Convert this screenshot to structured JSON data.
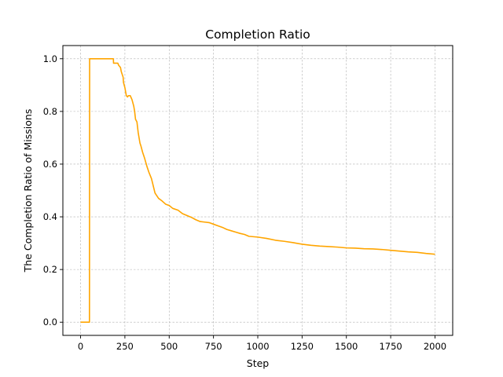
{
  "chart_data": {
    "type": "line",
    "title": "Completion Ratio",
    "xlabel": "Step",
    "ylabel": "The Completion Ratio of Missions",
    "xlim": [
      -100,
      2100
    ],
    "ylim": [
      -0.05,
      1.05
    ],
    "xticks": [
      0,
      250,
      500,
      750,
      1000,
      1250,
      1500,
      1750,
      2000
    ],
    "xtick_labels": [
      "0",
      "250",
      "500",
      "750",
      "1000",
      "1250",
      "1500",
      "1750",
      "2000"
    ],
    "yticks": [
      0.0,
      0.2,
      0.4,
      0.6,
      0.8,
      1.0
    ],
    "ytick_labels": [
      "0.0",
      "0.2",
      "0.4",
      "0.6",
      "0.8",
      "1.0"
    ],
    "grid": true,
    "series": [
      {
        "color": "#ffa500",
        "x": [
          0,
          50,
          51,
          100,
          185,
          186,
          210,
          215,
          225,
          230,
          240,
          242,
          250,
          258,
          265,
          270,
          280,
          290,
          300,
          305,
          310,
          318,
          325,
          335,
          340,
          350,
          360,
          375,
          385,
          400,
          420,
          440,
          460,
          480,
          500,
          520,
          550,
          575,
          600,
          625,
          650,
          675,
          700,
          725,
          750,
          775,
          800,
          825,
          850,
          875,
          900,
          925,
          950,
          1000,
          1050,
          1100,
          1150,
          1200,
          1250,
          1300,
          1350,
          1400,
          1450,
          1500,
          1550,
          1600,
          1650,
          1700,
          1750,
          1800,
          1850,
          1900,
          1950,
          2000
        ],
        "y": [
          0.0,
          0.0,
          1.0,
          1.0,
          1.0,
          0.983,
          0.983,
          0.975,
          0.967,
          0.95,
          0.93,
          0.91,
          0.89,
          0.86,
          0.855,
          0.86,
          0.86,
          0.845,
          0.82,
          0.8,
          0.77,
          0.76,
          0.72,
          0.68,
          0.67,
          0.645,
          0.625,
          0.59,
          0.57,
          0.545,
          0.49,
          0.47,
          0.46,
          0.448,
          0.443,
          0.432,
          0.425,
          0.412,
          0.405,
          0.398,
          0.389,
          0.382,
          0.38,
          0.378,
          0.372,
          0.366,
          0.36,
          0.352,
          0.347,
          0.342,
          0.337,
          0.333,
          0.326,
          0.323,
          0.318,
          0.311,
          0.307,
          0.302,
          0.296,
          0.292,
          0.289,
          0.287,
          0.285,
          0.282,
          0.281,
          0.279,
          0.278,
          0.276,
          0.273,
          0.27,
          0.267,
          0.265,
          0.261,
          0.258
        ]
      }
    ]
  }
}
